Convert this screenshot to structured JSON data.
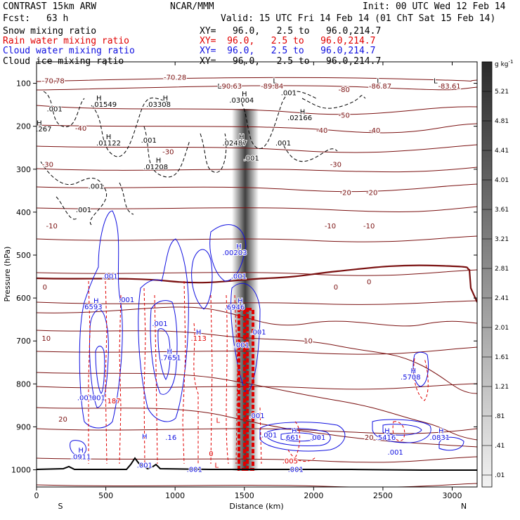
{
  "header": {
    "title": "CONTRAST 15km ARW",
    "center": "NCAR/MMM",
    "init": "Init: 00 UTC Wed 12 Feb 14",
    "fcst_label": "Fcst:",
    "fcst_value": "63 h",
    "valid": "Valid: 15 UTC Fri 14 Feb 14 (01 ChT Sat 15 Feb 14)"
  },
  "legend": [
    {
      "label": "Snow mixing ratio",
      "xy": "XY=   96.0,   2.5 to   96.0,214.7",
      "color": "#000000"
    },
    {
      "label": "Rain water mixing ratio",
      "xy": "XY=  96.0,   2.5 to   96.0,214.7",
      "color": "#e00000"
    },
    {
      "label": "Cloud water mixing ratio",
      "xy": "XY=  96.0,   2.5 to   96.0,214.7",
      "color": "#1010e0"
    },
    {
      "label": "Cloud ice mixing ratio",
      "xy": "XY=   96.0,   2.5 to   96.0,214.7",
      "color": "#000000"
    }
  ],
  "colors": {
    "temperature": "#7a1010",
    "rain": "#e00000",
    "cloud": "#1010e0",
    "ice": "#000000",
    "ground": "#000000"
  },
  "chart_data": {
    "type": "cross-section",
    "xlabel": "Distance (km)",
    "ylabel": "Pressure (hPa)",
    "xlim": [
      0,
      3180
    ],
    "ylim": [
      1040,
      50
    ],
    "x_ticks": [
      0,
      500,
      1000,
      1500,
      2000,
      2500,
      3000
    ],
    "x_tick_labels": [
      "0",
      "500",
      "1000",
      "1500",
      "2000",
      "2500",
      "3000"
    ],
    "y_ticks": [
      100,
      200,
      300,
      400,
      500,
      600,
      700,
      800,
      900,
      1000
    ],
    "y_tick_labels": [
      "100",
      "200",
      "300",
      "400",
      "500",
      "600",
      "700",
      "800",
      "900",
      "1000"
    ],
    "x_end_labels": {
      "left": "S",
      "right": "N"
    },
    "colorbar": {
      "unit": "g kg",
      "unit_exp": "-1",
      "labels": [
        "5.21",
        "4.81",
        "4.41",
        "4.01",
        "3.61",
        "3.21",
        "2.81",
        "2.41",
        "2.01",
        "1.61",
        "1.21",
        ".81",
        ".41",
        ".01"
      ]
    },
    "temperature_labels": [
      {
        "text": "-70.78",
        "x": 120,
        "p": 100
      },
      {
        "text": "-70.28",
        "x": 1000,
        "p": 92
      },
      {
        "text": "-90.63",
        "x": 1400,
        "p": 112
      },
      {
        "text": "-89.84",
        "x": 1700,
        "p": 112
      },
      {
        "text": "-86.87",
        "x": 2480,
        "p": 112
      },
      {
        "text": "-83.61",
        "x": 2980,
        "p": 112
      },
      {
        "text": "-80",
        "x": 2220,
        "p": 120
      },
      {
        "text": "-50",
        "x": 2220,
        "p": 180
      },
      {
        "text": "-40",
        "x": 320,
        "p": 210
      },
      {
        "text": "-40",
        "x": 2060,
        "p": 215
      },
      {
        "text": "-40",
        "x": 2440,
        "p": 215
      },
      {
        "text": "-30",
        "x": 950,
        "p": 265
      },
      {
        "text": "-30",
        "x": 80,
        "p": 295
      },
      {
        "text": "-30",
        "x": 2160,
        "p": 295
      },
      {
        "text": "-20",
        "x": 2230,
        "p": 360
      },
      {
        "text": "-20",
        "x": 2420,
        "p": 360
      },
      {
        "text": "-10",
        "x": 110,
        "p": 438
      },
      {
        "text": "-10",
        "x": 2120,
        "p": 438
      },
      {
        "text": "-10",
        "x": 2400,
        "p": 438
      },
      {
        "text": "0",
        "x": 60,
        "p": 580
      },
      {
        "text": "0",
        "x": 2400,
        "p": 568
      },
      {
        "text": "0",
        "x": 2160,
        "p": 580
      },
      {
        "text": "10",
        "x": 70,
        "p": 700
      },
      {
        "text": "10",
        "x": 1960,
        "p": 705
      },
      {
        "text": "20",
        "x": 190,
        "p": 888
      },
      {
        "text": "20",
        "x": 2400,
        "p": 930
      }
    ],
    "field_labels": [
      {
        "text": "H",
        "x": 450,
        "p": 140
      },
      {
        "text": ".01549",
        "x": 490,
        "p": 155
      },
      {
        "text": "H",
        "x": 930,
        "p": 140
      },
      {
        "text": ".03308",
        "x": 880,
        "p": 155
      },
      {
        "text": "H",
        "x": 1500,
        "p": 130
      },
      {
        "text": ".03004",
        "x": 1480,
        "p": 145
      },
      {
        "text": "H",
        "x": 1920,
        "p": 172
      },
      {
        "text": ".02166",
        "x": 1900,
        "p": 186
      },
      {
        "text": "H",
        "x": 20,
        "p": 198
      },
      {
        "text": ".01267",
        "x": 20,
        "p": 212
      },
      {
        "text": "H",
        "x": 520,
        "p": 230
      },
      {
        "text": ".01122",
        "x": 520,
        "p": 245
      },
      {
        "text": "H",
        "x": 1480,
        "p": 230
      },
      {
        "text": ".02487",
        "x": 1430,
        "p": 245
      },
      {
        "text": "H",
        "x": 880,
        "p": 285
      },
      {
        "text": ".01208",
        "x": 860,
        "p": 300
      },
      {
        "text": ".001",
        "x": 130,
        "p": 165
      },
      {
        "text": ".001",
        "x": 1820,
        "p": 128
      },
      {
        "text": ".001",
        "x": 810,
        "p": 238
      },
      {
        "text": ".001",
        "x": 1780,
        "p": 245
      },
      {
        "text": ".001",
        "x": 1550,
        "p": 280
      },
      {
        "text": ".001",
        "x": 430,
        "p": 345
      },
      {
        "text": ".001",
        "x": 340,
        "p": 400
      },
      {
        "text": "H",
        "x": 1460,
        "p": 485
      },
      {
        "text": ".00203",
        "x": 1430,
        "p": 500
      },
      {
        "text": ".001",
        "x": 530,
        "p": 555
      },
      {
        "text": ".001",
        "x": 1460,
        "p": 555
      },
      {
        "text": "H",
        "x": 430,
        "p": 612
      },
      {
        "text": "6593",
        "x": 410,
        "p": 626
      },
      {
        "text": ".001",
        "x": 650,
        "p": 610
      },
      {
        "text": "H",
        "x": 1470,
        "p": 612
      },
      {
        "text": ".6946",
        "x": 1430,
        "p": 627
      },
      {
        "text": ".001",
        "x": 890,
        "p": 665
      },
      {
        "text": ".001",
        "x": 1600,
        "p": 685
      },
      {
        "text": "H",
        "x": 1170,
        "p": 685
      },
      {
        "text": ".113",
        "x": 1170,
        "p": 700
      },
      {
        "text": "H",
        "x": 960,
        "p": 730
      },
      {
        "text": ".7651",
        "x": 970,
        "p": 745
      },
      {
        "text": ".001",
        "x": 1480,
        "p": 715
      },
      {
        "text": "H",
        "x": 2720,
        "p": 775
      },
      {
        "text": ".5708",
        "x": 2700,
        "p": 790
      },
      {
        "text": ".001",
        "x": 350,
        "p": 838
      },
      {
        "text": ".001",
        "x": 440,
        "p": 838
      },
      {
        "text": ".187",
        "x": 550,
        "p": 845
      },
      {
        "text": ".001",
        "x": 1590,
        "p": 880
      },
      {
        "text": ".001",
        "x": 1680,
        "p": 925
      },
      {
        "text": "H",
        "x": 1860,
        "p": 915
      },
      {
        "text": ".661",
        "x": 1840,
        "p": 930
      },
      {
        "text": ".001",
        "x": 2030,
        "p": 930
      },
      {
        "text": "H",
        "x": 2530,
        "p": 915
      },
      {
        "text": ".5416",
        "x": 2520,
        "p": 930
      },
      {
        "text": "H",
        "x": 2920,
        "p": 915
      },
      {
        "text": ".0831",
        "x": 2910,
        "p": 930
      },
      {
        "text": ".001",
        "x": 2590,
        "p": 965
      },
      {
        "text": "H",
        "x": 320,
        "p": 960
      },
      {
        "text": ".0911",
        "x": 320,
        "p": 975
      },
      {
        "text": ".005",
        "x": 1830,
        "p": 985
      },
      {
        "text": ".001",
        "x": 1870,
        "p": 1005
      },
      {
        "text": ".001",
        "x": 1140,
        "p": 1005
      },
      {
        "text": ".001",
        "x": 780,
        "p": 995
      },
      {
        "text": "0",
        "x": 1260,
        "p": 968
      },
      {
        "text": "L",
        "x": 1310,
        "p": 890
      },
      {
        "text": "L",
        "x": 1300,
        "p": 995
      },
      {
        "text": "L",
        "x": 1320,
        "p": 112
      },
      {
        "text": "L",
        "x": 1720,
        "p": 100
      },
      {
        "text": "L",
        "x": 2470,
        "p": 100
      },
      {
        "text": "L",
        "x": 2880,
        "p": 100
      },
      {
        "text": "H",
        "x": 780,
        "p": 928
      },
      {
        "text": ".16",
        "x": 970,
        "p": 930
      }
    ]
  }
}
